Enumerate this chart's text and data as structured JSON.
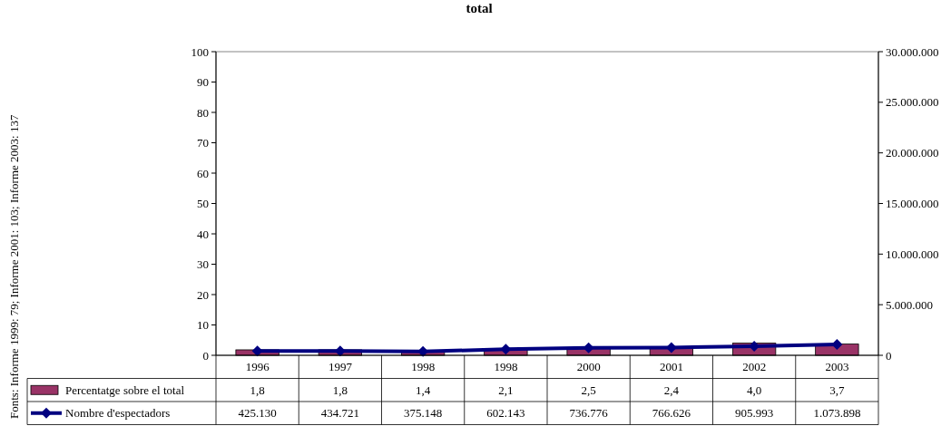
{
  "chart_data": {
    "type": "bar",
    "title": "total",
    "categories": [
      "1996",
      "1997",
      "1998",
      "1998",
      "2000",
      "2001",
      "2002",
      "2003"
    ],
    "series": [
      {
        "name": "Percentatge sobre el total",
        "color": "#993366",
        "values": [
          1.8,
          1.8,
          1.4,
          2.1,
          2.5,
          2.4,
          4.0,
          3.7
        ],
        "value_labels": [
          "1,8",
          "1,8",
          "1,4",
          "2,1",
          "2,5",
          "2,4",
          "4,0",
          "3,7"
        ]
      },
      {
        "name": "Nombre d'espectadors",
        "type": "line",
        "axis": "y2",
        "color": "#000080",
        "marker": "diamond",
        "line_style": "solid",
        "values": [
          425130,
          434721,
          375148,
          602143,
          736776,
          766626,
          905993,
          1073898
        ],
        "value_labels": [
          "425.130",
          "434.721",
          "375.148",
          "602.143",
          "736.776",
          "766.626",
          "905.993",
          "1.073.898"
        ]
      }
    ],
    "ylim": [
      0,
      100
    ],
    "yticks": [
      0,
      10,
      20,
      30,
      40,
      50,
      60,
      70,
      80,
      90,
      100
    ],
    "y2lim": [
      0,
      30000000
    ],
    "y2ticks": [
      0,
      {
        "value": 5000000,
        "label": "5.000.000"
      },
      {
        "value": 10000000,
        "label": "10.000.000"
      },
      {
        "value": 15000000,
        "label": "15.000.000"
      },
      {
        "value": 20000000,
        "label": "20.000.000"
      },
      {
        "value": 25000000,
        "label": "25.000.000"
      },
      {
        "value": 30000000,
        "label": "30.000.000"
      }
    ],
    "legend": "bottom",
    "grid": false,
    "annotations": [
      "Fonts: Informe 1999: 79; Informe 2001: 103; Informe 2003: 137"
    ]
  }
}
